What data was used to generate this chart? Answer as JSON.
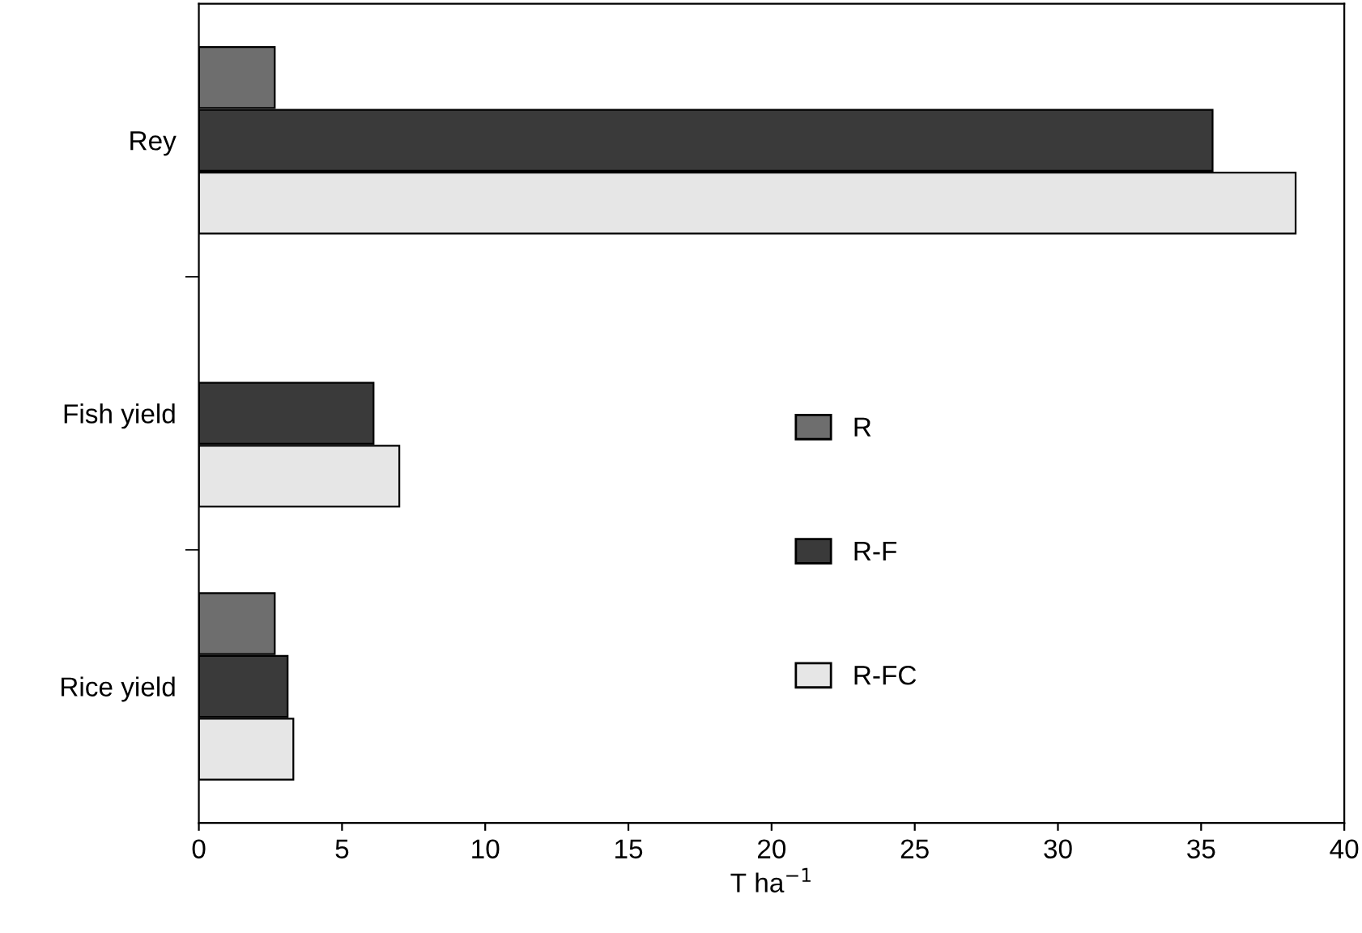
{
  "chart_data": {
    "type": "bar",
    "orientation": "horizontal",
    "xlabel": "T ha$^{−1}$",
    "categories": [
      "Rey",
      "Fish yield",
      "Rice yield"
    ],
    "series": [
      {
        "name": "R",
        "color": "#6e6e6e",
        "values": [
          2.65,
          null,
          2.65
        ]
      },
      {
        "name": "R-F",
        "color": "#3a3a3a",
        "values": [
          35.4,
          6.1,
          3.1
        ]
      },
      {
        "name": "R-FC",
        "color": "#e6e6e6",
        "values": [
          38.3,
          7.0,
          3.3
        ]
      }
    ],
    "xlim": [
      0,
      40
    ],
    "xticks": [
      0,
      5,
      10,
      15,
      20,
      25,
      30,
      35,
      40
    ],
    "grid": false,
    "legend": "right"
  }
}
